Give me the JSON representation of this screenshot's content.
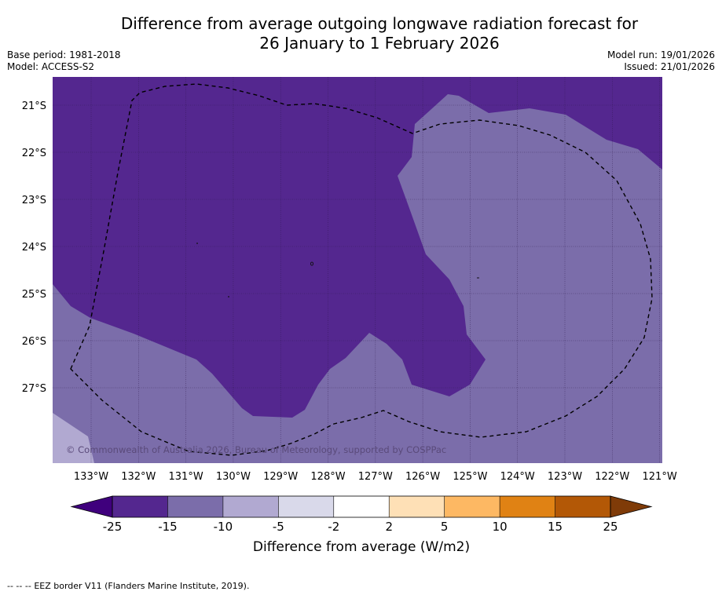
{
  "header": {
    "title_line1": "Difference from average outgoing longwave radiation forecast for",
    "title_line2": "26 January to 1 February 2026",
    "base_period": "Base period: 1981-2018",
    "model": "Model: ACCESS-S2",
    "model_run": "Model run: 19/01/2026",
    "issued": "Issued: 21/01/2026"
  },
  "map": {
    "lat_labels": [
      "21°S",
      "22°S",
      "23°S",
      "24°S",
      "25°S",
      "26°S",
      "27°S"
    ],
    "lon_labels": [
      "133°W",
      "132°W",
      "131°W",
      "130°W",
      "129°W",
      "128°W",
      "127°W",
      "126°W",
      "125°W",
      "124°W",
      "123°W",
      "122°W",
      "121°W"
    ],
    "copyright": "© Commonwealth of Australia 2026, Bureau of Meteorology, supported by COSPPac",
    "layers": [
      {
        "name": "anomaly-below-15",
        "color": "#54278f"
      },
      {
        "name": "anomaly-15-to-10",
        "color": "#7b6daa"
      },
      {
        "name": "anomaly-10-to-5",
        "color": "#b1a9d1"
      }
    ],
    "eez_color": "#000000"
  },
  "colorbar": {
    "bins": [
      "#3f007d",
      "#54278f",
      "#7b6daa",
      "#b1a9d1",
      "#d9d9ea",
      "#ffffff",
      "#fee0b6",
      "#fdb863",
      "#e08214",
      "#b35806",
      "#7f3b08"
    ],
    "ticks": [
      "-25",
      "-15",
      "-10",
      "-5",
      "-2",
      "2",
      "5",
      "10",
      "15",
      "25"
    ],
    "label": "Difference from average (W/m2)"
  },
  "footer": {
    "legend_marker": "-- -- --",
    "legend_text": "EEZ border V11 (Flanders Marine Institute, 2019)."
  }
}
